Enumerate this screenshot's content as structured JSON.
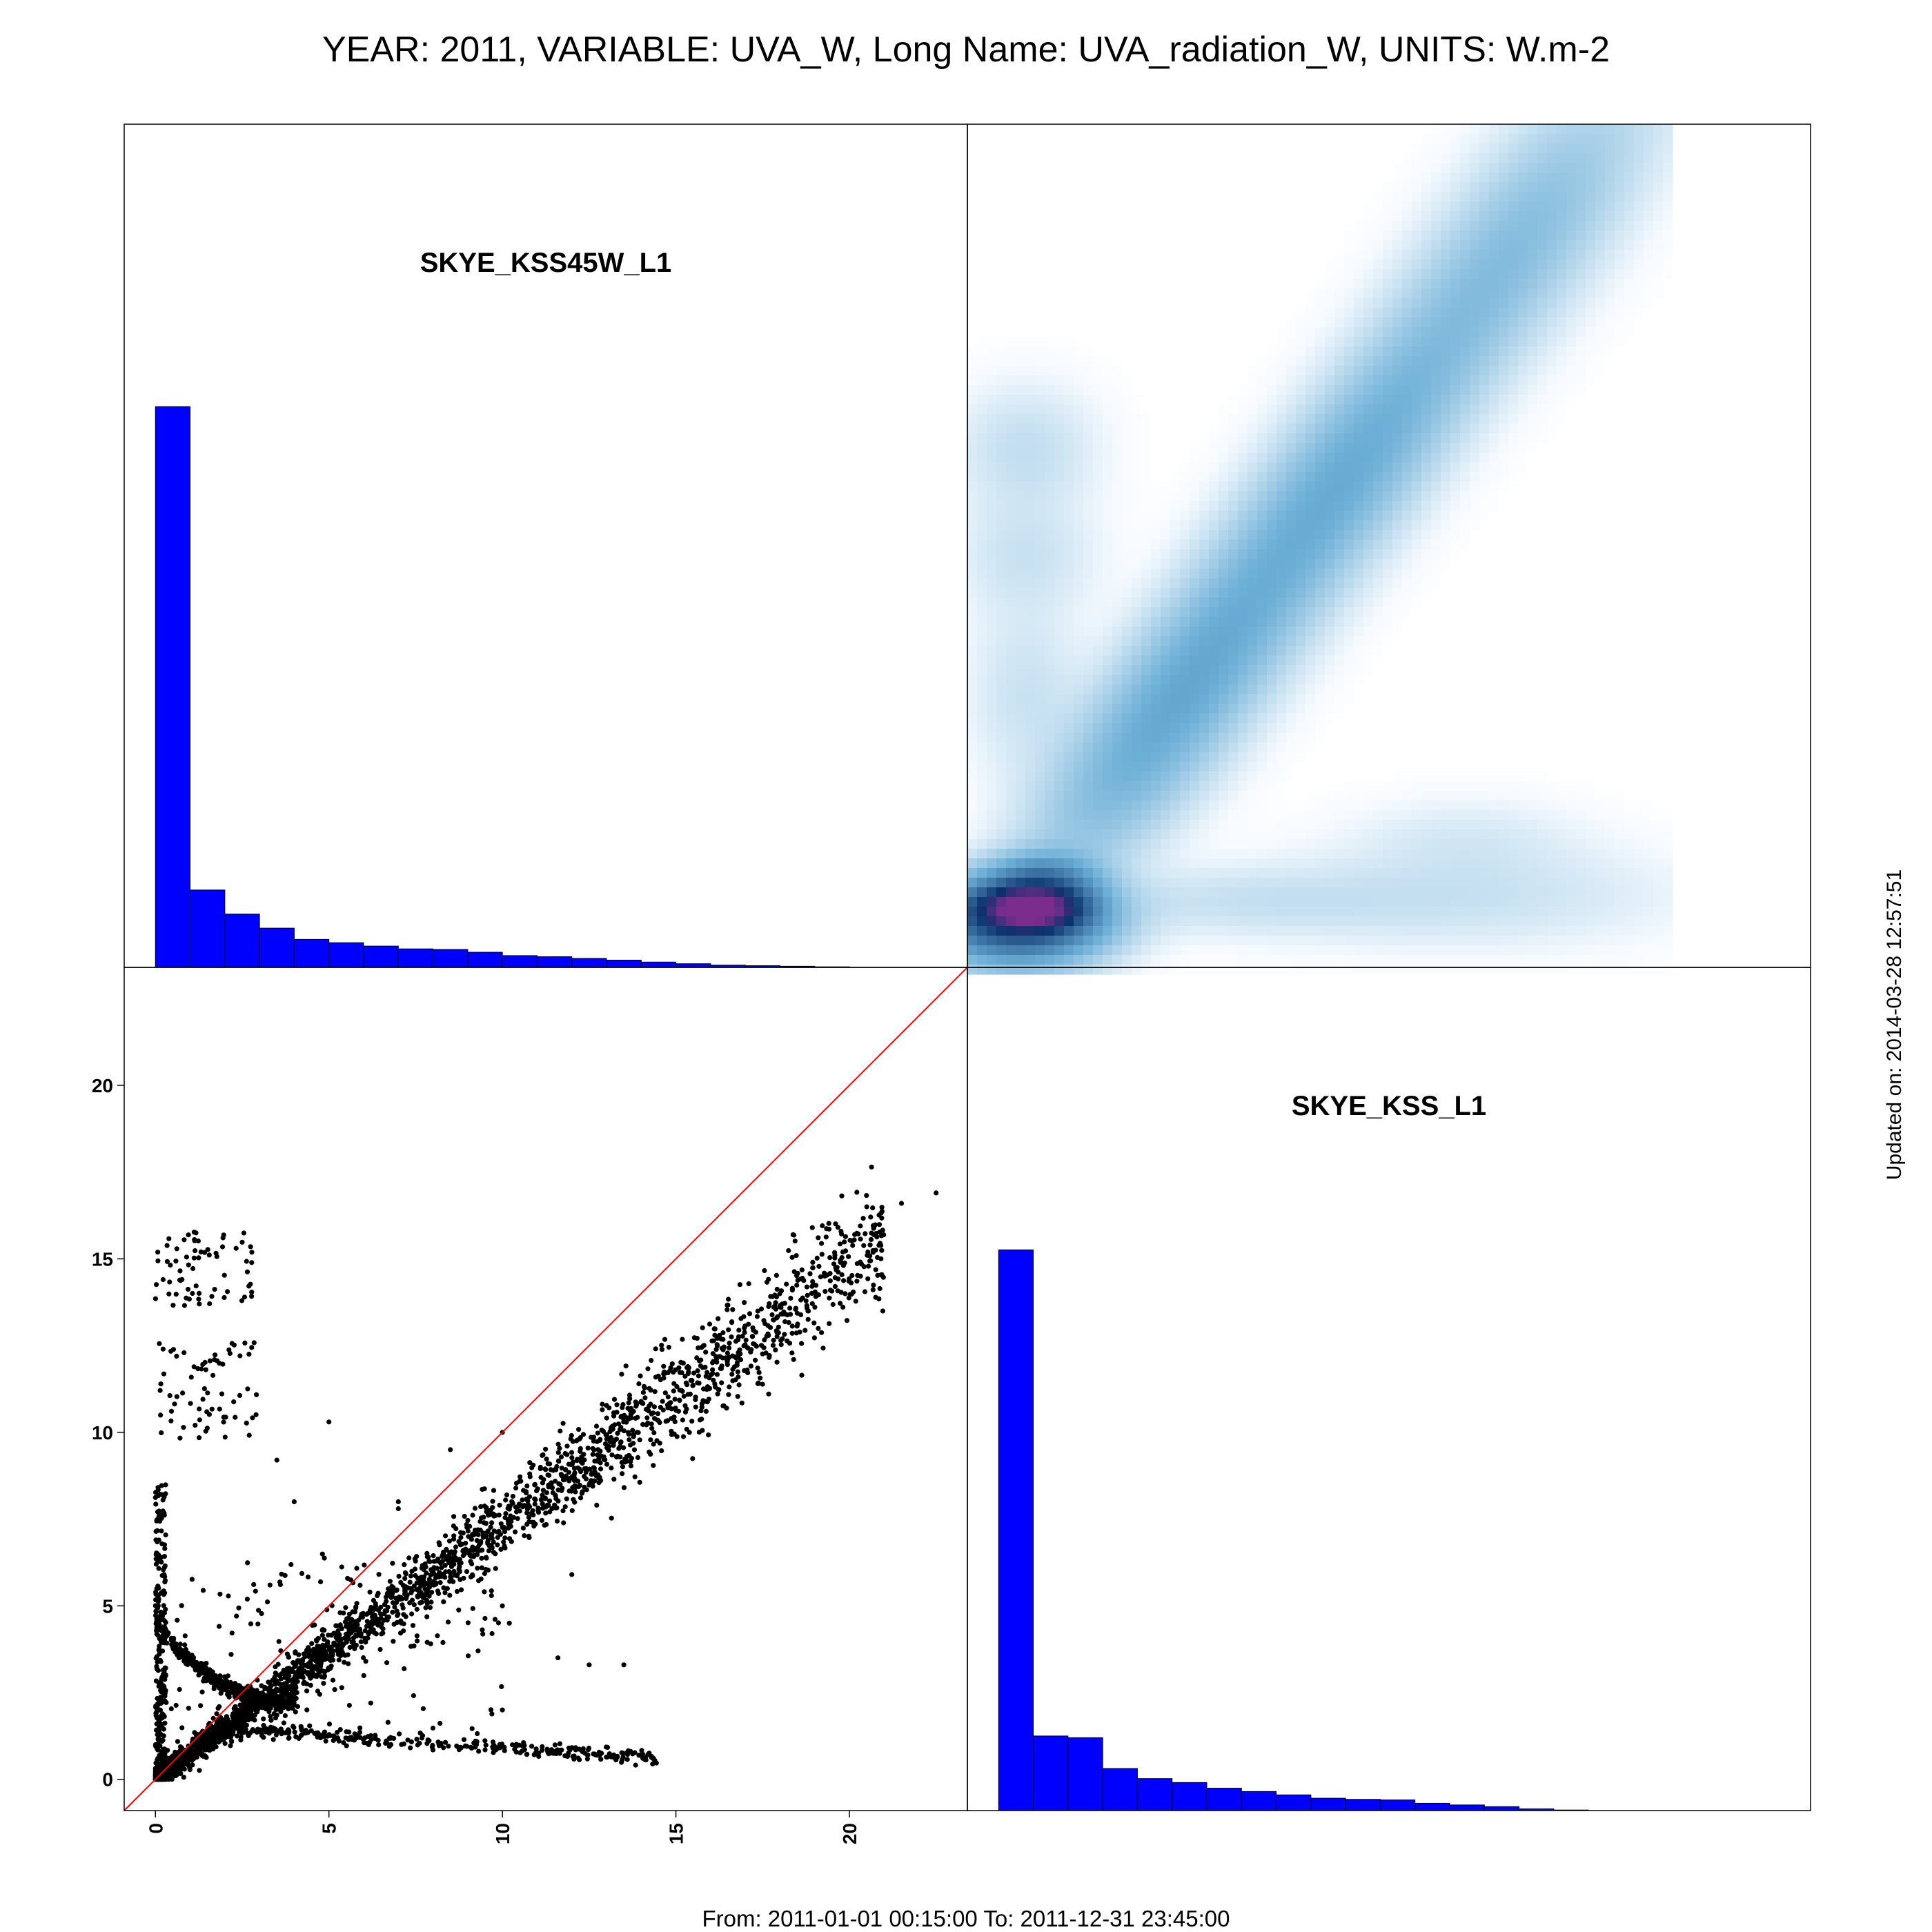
{
  "title": "YEAR: 2011, VARIABLE: UVA_W, Long Name: UVA_radiation_W, UNITS: W.m-2",
  "footer": "From: 2011-01-01 00:15:00 To: 2011-12-31 23:45:00",
  "updated": "Updated on: 2014-03-28 12:57:51",
  "colors": {
    "histogram_fill": "#0000ff",
    "histogram_edge": "#000000",
    "scatter_point": "#000000",
    "identity_line": "#ff0000",
    "density_low": "#f7fbff",
    "density_mid": "#6baed6",
    "density_high": "#08306b",
    "density_peak": "#7b2d8e"
  },
  "chart_data": {
    "type": "scatter-matrix",
    "axis_range": [
      -0.9,
      23.4
    ],
    "ticks": [
      0,
      5,
      10,
      15,
      20
    ],
    "tick_labels": [
      "0",
      "5",
      "10",
      "15",
      "20"
    ],
    "variables": [
      "SKYE_KSS45W_L1",
      "SKYE_KSS_L1"
    ],
    "histogram_bins": {
      "width": 1,
      "start": 0,
      "SKYE_KSS45W_L1": [
        100,
        13.8,
        9.5,
        7.0,
        5.0,
        4.4,
        3.8,
        3.3,
        3.2,
        2.7,
        2.1,
        1.9,
        1.6,
        1.3,
        0.95,
        0.65,
        0.4,
        0.3,
        0.2,
        0.1
      ],
      "SKYE_KSS_L1": [
        100,
        13.3,
        13.0,
        7.5,
        5.7,
        5.0,
        4.0,
        3.4,
        2.8,
        2.2,
        2.0,
        1.9,
        1.3,
        1.0,
        0.7,
        0.3,
        0.1
      ]
    },
    "identity_line": {
      "from": [
        -0.9,
        -0.9
      ],
      "to": [
        23.4,
        23.4
      ]
    },
    "scatter": {
      "x_variable": "SKYE_KSS45W_L1",
      "y_variable": "SKYE_KSS_L1",
      "main_trend": {
        "x_range": [
          0,
          21
        ],
        "slope": 0.74,
        "spread": 0.45
      },
      "low_branch": {
        "x_range": [
          1.5,
          14.5
        ],
        "y_start": 1.5,
        "y_end": 0.6
      },
      "curve_branch": {
        "x_range": [
          0,
          4
        ],
        "y_start": 4.5,
        "y_min": 2.2
      },
      "vertical_cluster": {
        "x_range": [
          0,
          0.3
        ],
        "y_range": [
          0,
          8.5
        ]
      },
      "upper_left_clusters": [
        {
          "x_range": [
            0,
            2.8
          ],
          "y_range": [
            13.6,
            15.8
          ]
        },
        {
          "x_range": [
            0.1,
            3.0
          ],
          "y_range": [
            9.8,
            12.6
          ]
        }
      ],
      "isolated_points": [
        [
          22.5,
          16.9
        ],
        [
          21.5,
          16.6
        ],
        [
          20.5,
          16.5
        ],
        [
          10,
          10
        ],
        [
          8.5,
          9.5
        ],
        [
          5,
          10.3
        ],
        [
          12,
          5.9
        ],
        [
          3.5,
          9.2
        ],
        [
          4,
          8
        ],
        [
          7,
          8
        ],
        [
          7,
          7.8
        ],
        [
          6.3,
          4.5
        ],
        [
          10,
          5
        ],
        [
          10.2,
          4.5
        ],
        [
          9.7,
          4.2
        ],
        [
          11.6,
          3.5
        ],
        [
          12.5,
          3.3
        ],
        [
          13.5,
          3.3
        ],
        [
          9.3,
          3.7
        ],
        [
          10,
          2.0
        ]
      ]
    },
    "density": {
      "x_range": [
        -0.9,
        19.4
      ],
      "y_range": [
        -0.9,
        23.4
      ],
      "kernels": [
        {
          "cx": 0.6,
          "cy": 0.5,
          "sx": 1.4,
          "sy": 0.7,
          "w": 4.0
        },
        {
          "cx": 0.9,
          "cy": 0.8,
          "sx": 0.8,
          "sy": 0.35,
          "w": 8.0
        },
        {
          "cx": 1.3,
          "cy": 1.5,
          "sx": 0.9,
          "sy": 0.5,
          "w": 1.6
        },
        {
          "cx": 5,
          "cy": 6.6,
          "sx": 3.6,
          "sy": 1.1,
          "w": 0.9,
          "trend": 1.32
        },
        {
          "cx": 10,
          "cy": 13.3,
          "sx": 3.6,
          "sy": 1.1,
          "w": 0.8,
          "trend": 1.32
        },
        {
          "cx": 15,
          "cy": 20,
          "sx": 3.4,
          "sy": 1.2,
          "w": 0.5,
          "trend": 1.32
        },
        {
          "cx": 0.8,
          "cy": 14,
          "sx": 1.2,
          "sy": 1.1,
          "w": 0.15
        },
        {
          "cx": 0.8,
          "cy": 11,
          "sx": 1.2,
          "sy": 1.1,
          "w": 0.12
        },
        {
          "cx": 0.8,
          "cy": 7,
          "sx": 1.0,
          "sy": 1.6,
          "w": 0.12
        },
        {
          "cx": 7,
          "cy": 1.0,
          "sx": 3.2,
          "sy": 0.6,
          "w": 0.12
        },
        {
          "cx": 13.5,
          "cy": 1.2,
          "sx": 3.5,
          "sy": 0.9,
          "w": 0.12
        },
        {
          "cx": 13.5,
          "cy": 2.8,
          "sx": 2.0,
          "sy": 0.7,
          "w": 0.07
        }
      ]
    }
  }
}
